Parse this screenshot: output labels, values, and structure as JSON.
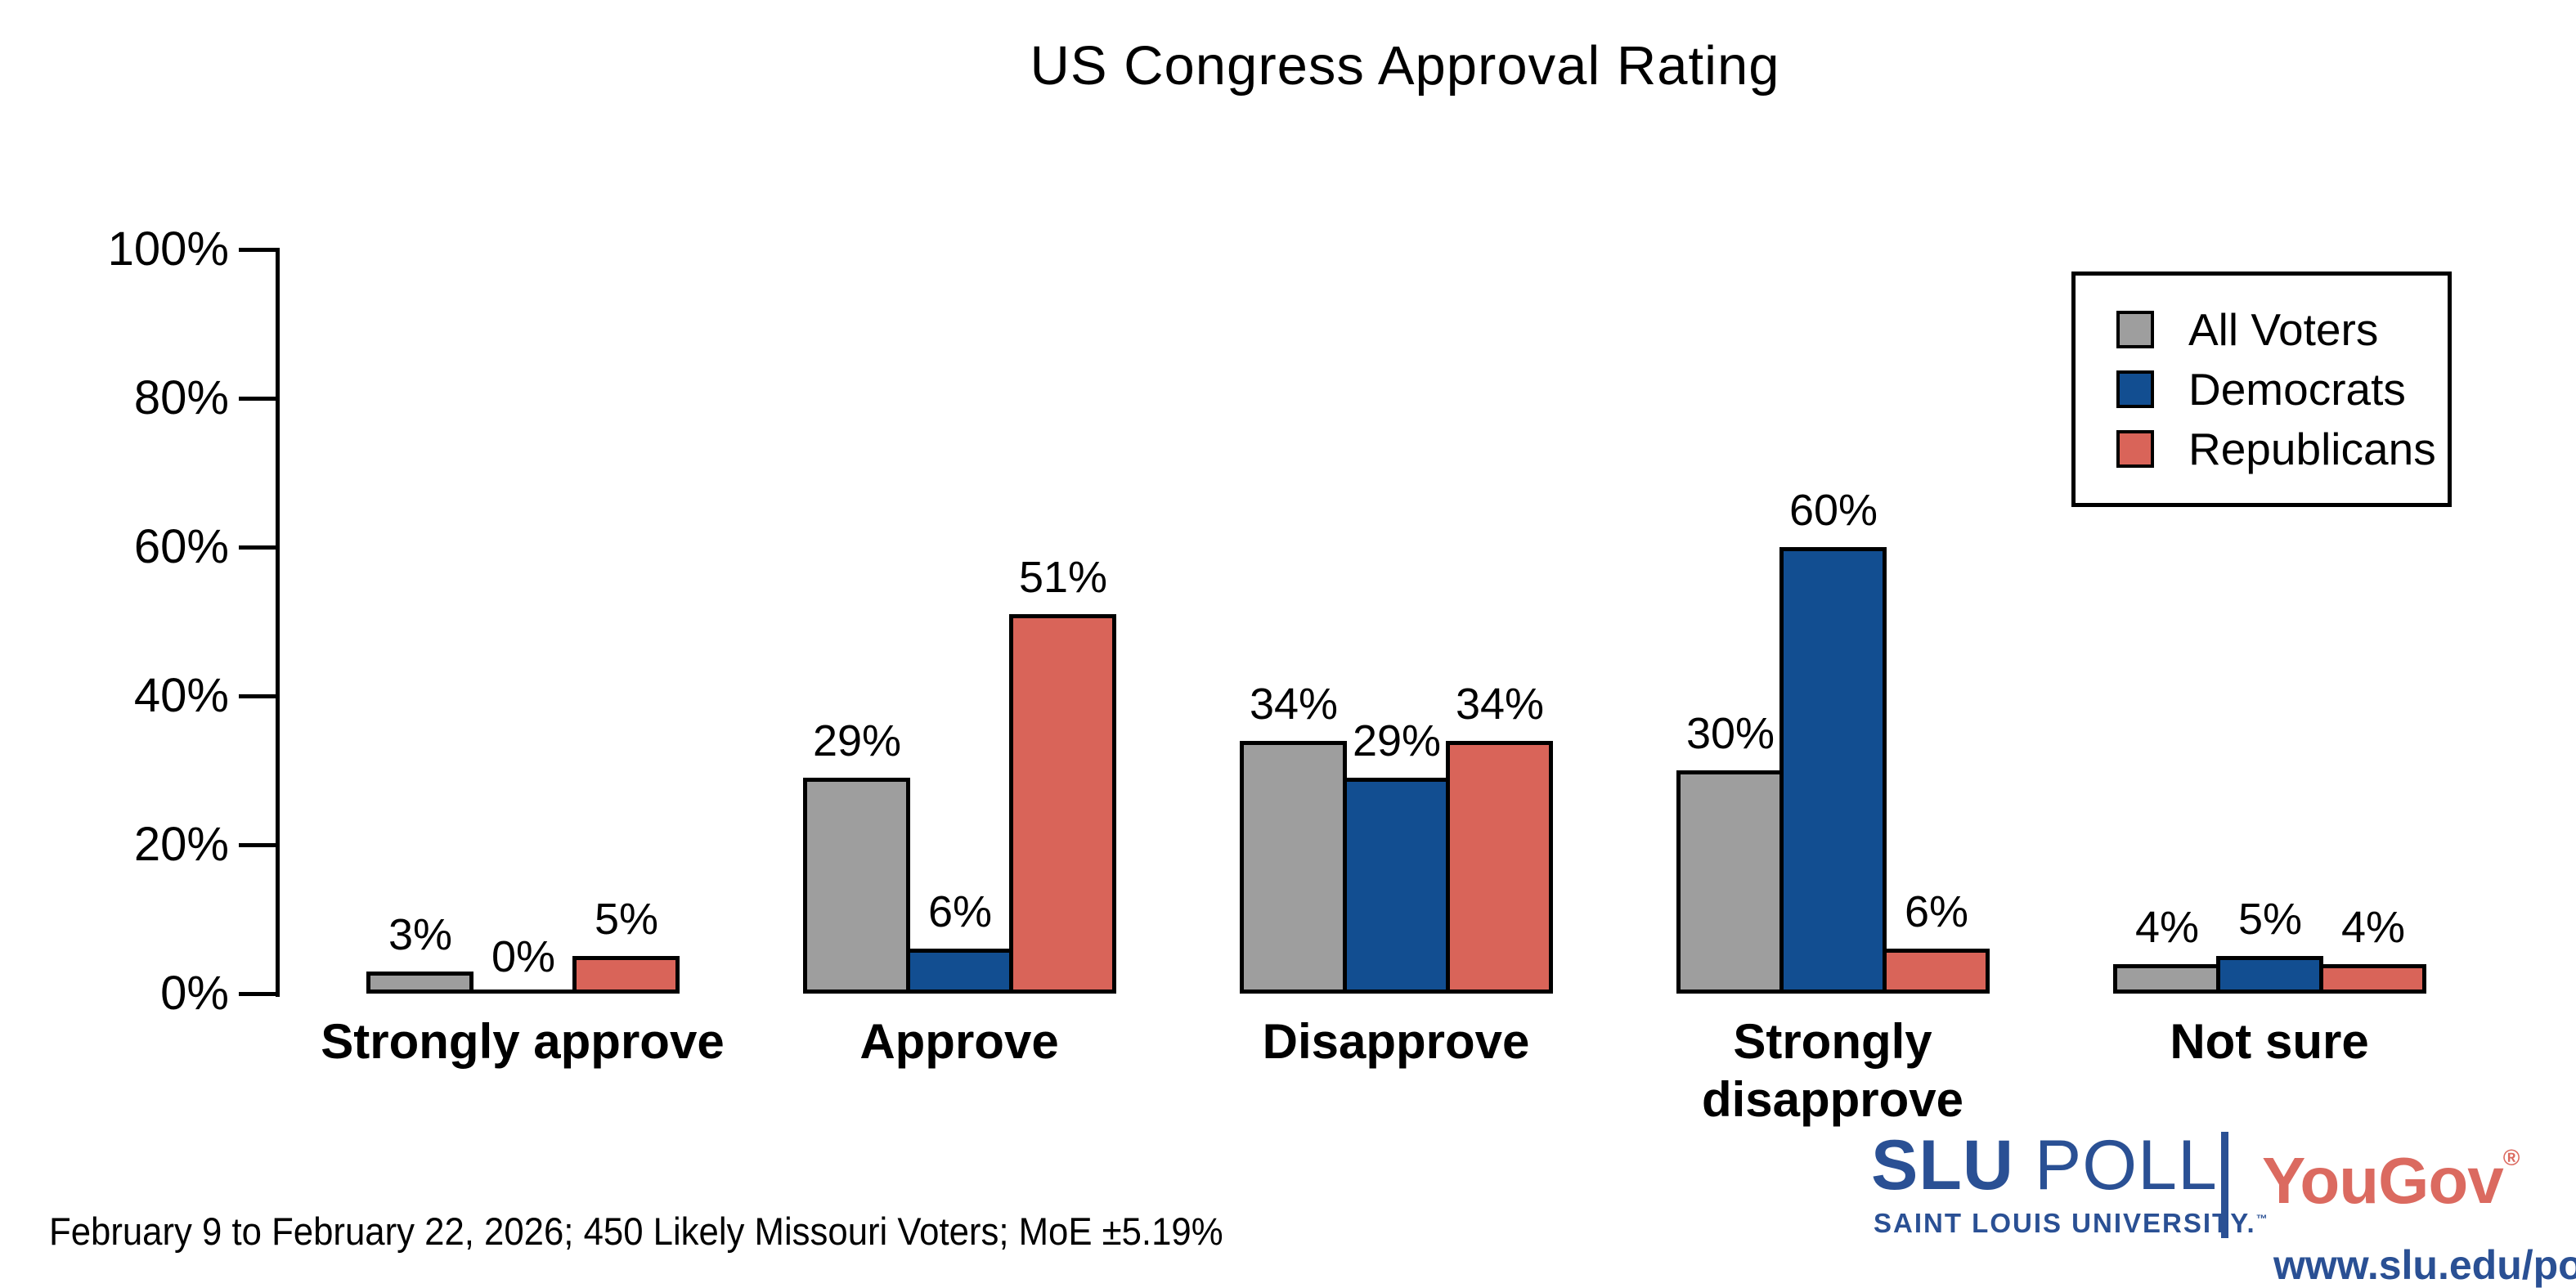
{
  "title": "US Congress Approval Rating",
  "chart_data": {
    "type": "bar",
    "title": "US Congress Approval Rating",
    "categories": [
      "Strongly approve",
      "Approve",
      "Disapprove",
      "Strongly disapprove",
      "Not sure"
    ],
    "series": [
      {
        "name": "All Voters",
        "color": "#9E9E9E",
        "values": [
          3,
          29,
          34,
          30,
          4
        ]
      },
      {
        "name": "Democrats",
        "color": "#124E91",
        "values": [
          0,
          6,
          29,
          60,
          5
        ]
      },
      {
        "name": "Republicans",
        "color": "#D96459",
        "values": [
          5,
          51,
          34,
          6,
          4
        ]
      }
    ],
    "value_suffix": "%",
    "bar_labels": true,
    "xlabel": "",
    "ylabel": "",
    "ylim": [
      0,
      100
    ],
    "yticks": [
      "0%",
      "20%",
      "40%",
      "60%",
      "80%",
      "100%"
    ],
    "grid": false,
    "legend_position": "top-right",
    "bar_outline_color": "#000000"
  },
  "footer": {
    "note": "February 9 to February 22, 2026; 450 Likely Missouri Voters; MoE ±5.19%"
  },
  "branding": {
    "slu": "SLU",
    "poll": "POLL",
    "slu_sub": "SAINT LOUIS UNIVERSITY.",
    "slu_tm": "™",
    "yougov": "YouGov",
    "yougov_reg": "®",
    "url": "www.slu.edu/poll",
    "slu_blue": "#2A5094",
    "yougov_red": "#DB6A60"
  }
}
